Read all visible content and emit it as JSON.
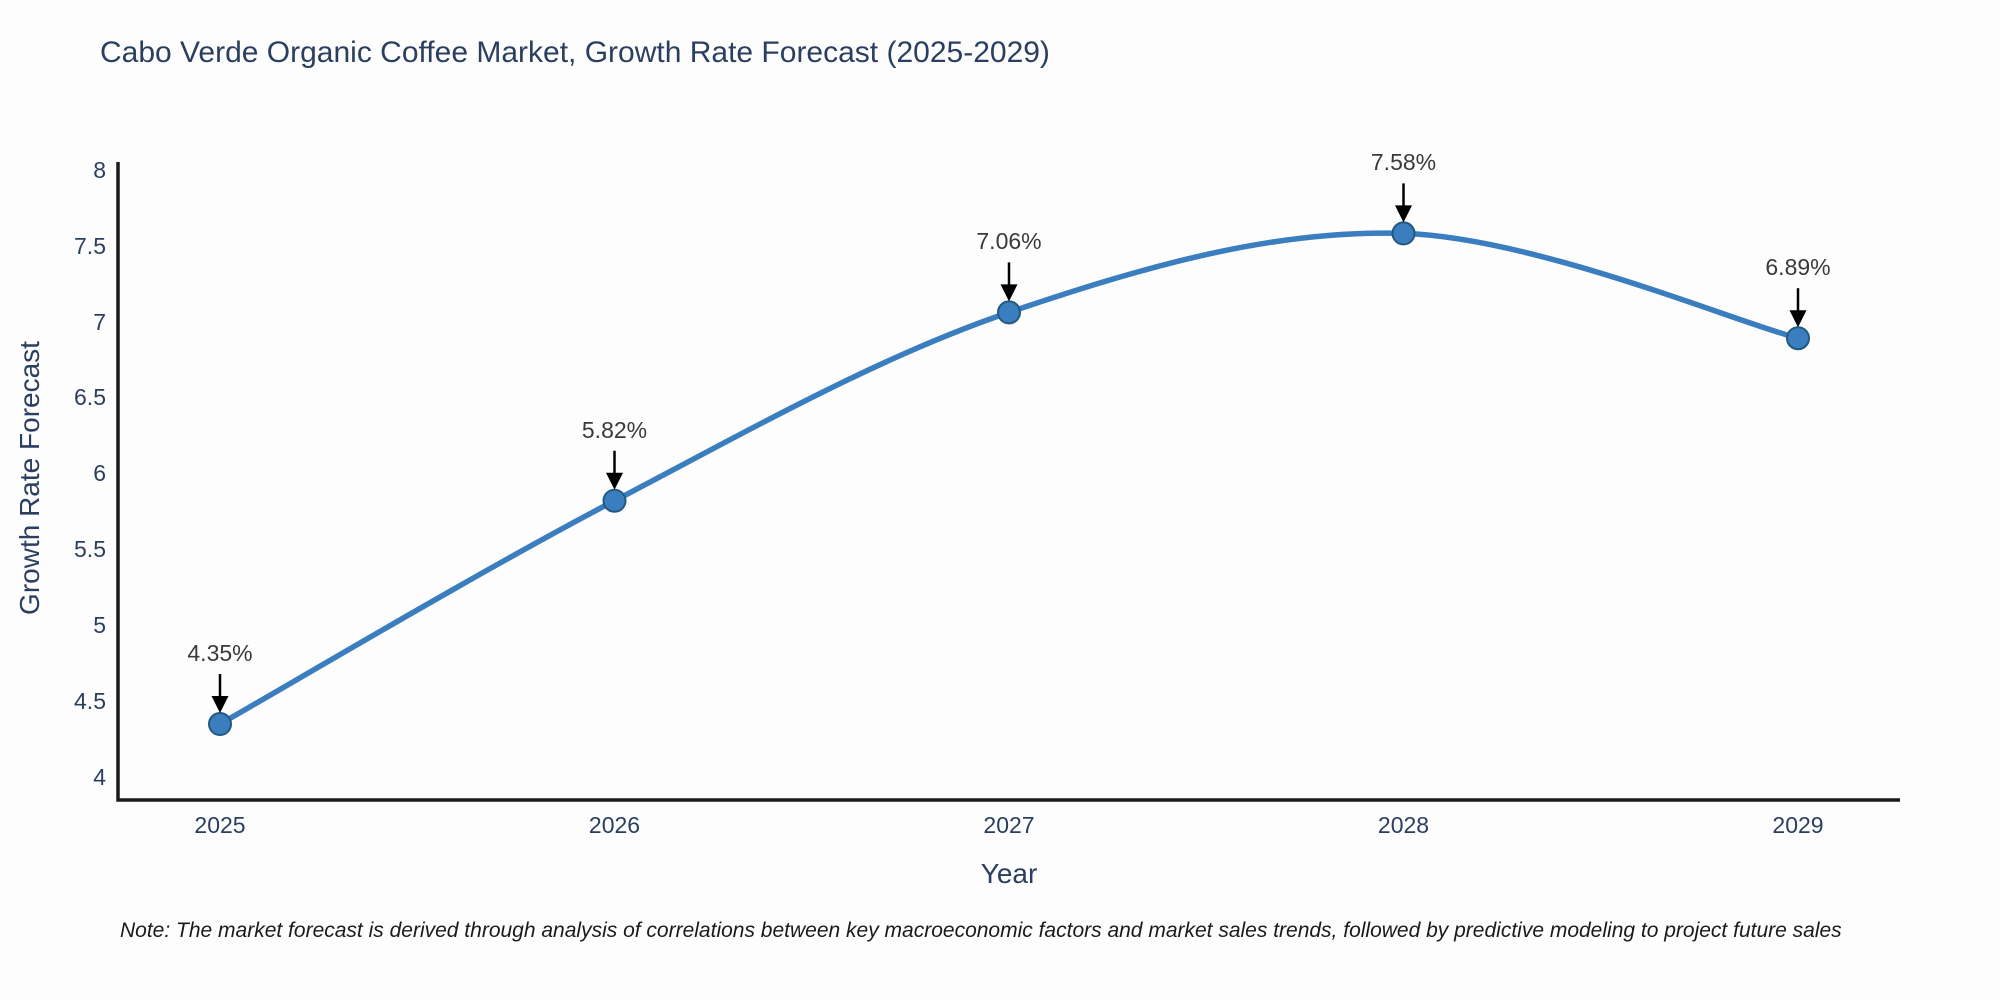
{
  "note": "Note: The market forecast is derived through analysis of correlations between key macroeconomic factors and market sales trends, followed by predictive modeling to project future sales",
  "chart_data": {
    "type": "line",
    "title": "Cabo Verde Organic Coffee Market, Growth Rate Forecast (2025-2029)",
    "xlabel": "Year",
    "ylabel": "Growth Rate Forecast",
    "categories": [
      "2025",
      "2026",
      "2027",
      "2028",
      "2029"
    ],
    "values": [
      4.35,
      5.82,
      7.06,
      7.58,
      6.89
    ],
    "point_labels": [
      "4.35%",
      "5.82%",
      "7.06%",
      "7.58%",
      "6.89%"
    ],
    "ytick_values": [
      4,
      4.5,
      5,
      5.5,
      6,
      6.5,
      7,
      7.5,
      8
    ],
    "ytick_labels": [
      "4",
      "4.5",
      "5",
      "5.5",
      "6",
      "6.5",
      "7",
      "7.5",
      "8"
    ],
    "ylim": [
      3.85,
      8.05
    ],
    "grid": false,
    "legend": false,
    "line_shape": "spline",
    "line_color": "#3a7ebf",
    "marker_color": "#3a7ebf",
    "marker_edge_color": "#22597f",
    "axis_color": "#1a1a1a",
    "annotation_arrow_color": "#000000",
    "annotation_text_color": "#3a3a3a",
    "title_color": "#2a3f5f"
  }
}
